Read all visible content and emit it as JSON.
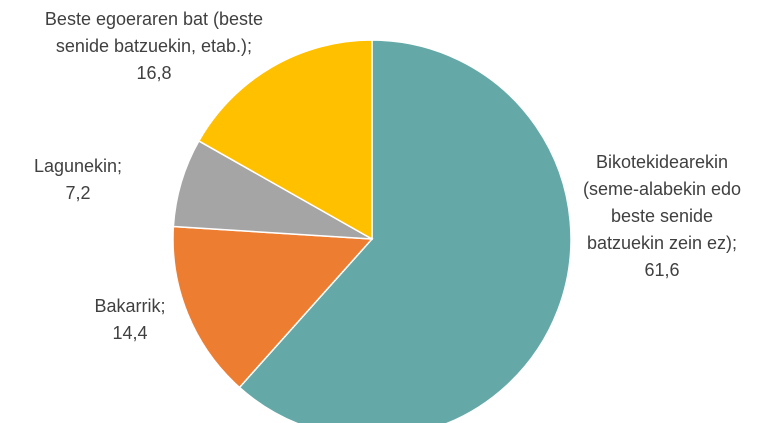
{
  "chart_data": {
    "type": "pie",
    "unit": "%",
    "start_angle_deg": 0,
    "direction": "clockwise",
    "slices": [
      {
        "label_lines": [
          "Bikotekidearekin",
          "(seme-alabekin edo",
          "beste senide",
          "batzuekin zein ez);"
        ],
        "value_text": "61,6",
        "value": 61.6,
        "color": "#64A9A7"
      },
      {
        "label_lines": [
          "Bakarrik;"
        ],
        "value_text": "14,4",
        "value": 14.4,
        "color": "#ED7D31"
      },
      {
        "label_lines": [
          "Lagunekin;"
        ],
        "value_text": "7,2",
        "value": 7.2,
        "color": "#A5A5A5"
      },
      {
        "label_lines": [
          "Beste egoeraren bat (beste",
          "senide batzuekin, etab.);"
        ],
        "value_text": "16,8",
        "value": 16.8,
        "color": "#FFC000"
      }
    ]
  }
}
